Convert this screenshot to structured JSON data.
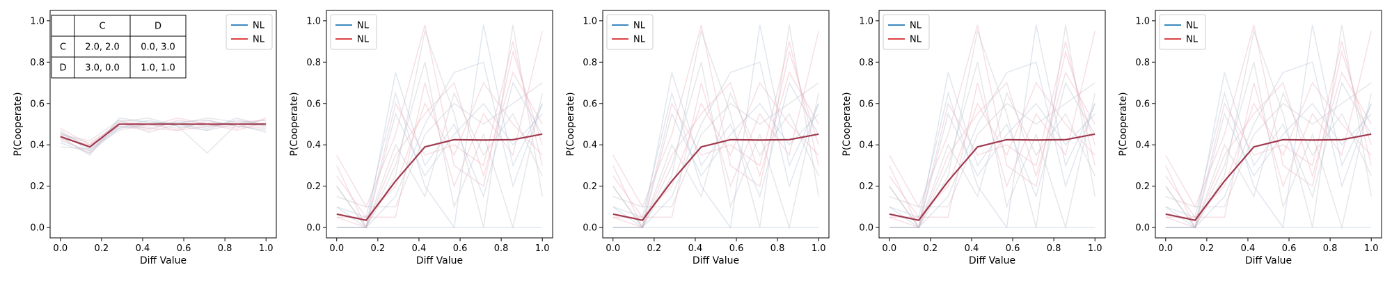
{
  "colors": {
    "blue": "#1f77b4",
    "red": "#d62728",
    "mean": "#a0384d",
    "bg_blue": "#aabbd0",
    "bg_red": "#e8a2b2",
    "bg_grey": "#bbbbc4"
  },
  "chart_data": [
    {
      "type": "line",
      "xlabel": "Diff Value",
      "ylabel": "P(Cooperate)",
      "xlim": [
        -0.05,
        1.05
      ],
      "ylim": [
        -0.05,
        1.05
      ],
      "xticks": [
        "0.0",
        "0.2",
        "0.4",
        "0.6",
        "0.8",
        "1.0"
      ],
      "yticks": [
        "0.0",
        "0.2",
        "0.4",
        "0.6",
        "0.8",
        "1.0"
      ],
      "legend": {
        "position": "top-right",
        "entries": [
          {
            "label": "NL",
            "color": "#1f77b4"
          },
          {
            "label": "NL",
            "color": "#d62728"
          }
        ]
      },
      "payoff_table": {
        "col_headers": [
          "",
          "C",
          "D"
        ],
        "rows": [
          [
            "C",
            "2.0, 2.0",
            "0.0, 3.0"
          ],
          [
            "D",
            "3.0, 0.0",
            "1.0, 1.0"
          ]
        ]
      },
      "x": [
        0.0,
        0.143,
        0.286,
        0.429,
        0.571,
        0.714,
        0.857,
        1.0
      ],
      "series": [
        {
          "name": "NL",
          "color": "#a0384d",
          "values": [
            0.44,
            0.39,
            0.5,
            0.5,
            0.5,
            0.5,
            0.5,
            0.5
          ]
        }
      ],
      "background_lines": [
        [
          0.46,
          0.37,
          0.49,
          0.48,
          0.51,
          0.49,
          0.5,
          0.52
        ],
        [
          0.43,
          0.4,
          0.51,
          0.5,
          0.47,
          0.52,
          0.49,
          0.48
        ],
        [
          0.47,
          0.38,
          0.52,
          0.46,
          0.5,
          0.53,
          0.51,
          0.5
        ],
        [
          0.41,
          0.36,
          0.48,
          0.52,
          0.49,
          0.47,
          0.53,
          0.49
        ],
        [
          0.45,
          0.41,
          0.5,
          0.49,
          0.53,
          0.5,
          0.47,
          0.51
        ],
        [
          0.39,
          0.38,
          0.47,
          0.5,
          0.48,
          0.51,
          0.5,
          0.46
        ],
        [
          0.44,
          0.35,
          0.53,
          0.51,
          0.5,
          0.48,
          0.52,
          0.5
        ],
        [
          0.48,
          0.4,
          0.49,
          0.47,
          0.52,
          0.5,
          0.48,
          0.53
        ],
        [
          0.42,
          0.37,
          0.51,
          0.53,
          0.49,
          0.36,
          0.5,
          0.49
        ],
        [
          0.46,
          0.39,
          0.48,
          0.5,
          0.51,
          0.52,
          0.49,
          0.47
        ],
        [
          0.43,
          0.36,
          0.5,
          0.48,
          0.47,
          0.49,
          0.51,
          0.52
        ],
        [
          0.45,
          0.42,
          0.52,
          0.51,
          0.5,
          0.47,
          0.5,
          0.5
        ]
      ]
    },
    {
      "type": "line",
      "xlabel": "Diff Value",
      "ylabel": "P(Cooperate)",
      "xlim": [
        -0.05,
        1.05
      ],
      "ylim": [
        -0.05,
        1.05
      ],
      "xticks": [
        "0.0",
        "0.2",
        "0.4",
        "0.6",
        "0.8",
        "1.0"
      ],
      "yticks": [
        "0.0",
        "0.2",
        "0.4",
        "0.6",
        "0.8",
        "1.0"
      ],
      "legend": {
        "position": "top-left",
        "entries": [
          {
            "label": "NL",
            "color": "#1f77b4"
          },
          {
            "label": "NL",
            "color": "#d62728"
          }
        ]
      },
      "x": [
        0.0,
        0.143,
        0.286,
        0.429,
        0.571,
        0.714,
        0.857,
        1.0
      ],
      "series": [
        {
          "name": "NL",
          "color": "#a0384d",
          "values": [
            0.065,
            0.035,
            0.225,
            0.39,
            0.425,
            0.423,
            0.425,
            0.452
          ]
        }
      ],
      "background_lines": [
        [
          0.0,
          0.0,
          0.0,
          0.0,
          0.0,
          0.0,
          0.0,
          0.0
        ],
        [
          0.35,
          0.1,
          0.45,
          0.98,
          0.3,
          0.2,
          0.85,
          0.4
        ],
        [
          0.2,
          0.0,
          0.25,
          0.95,
          0.55,
          0.0,
          0.98,
          0.15
        ],
        [
          0.1,
          0.05,
          0.65,
          0.2,
          0.0,
          0.98,
          0.3,
          0.6
        ],
        [
          0.05,
          0.0,
          0.35,
          0.55,
          0.7,
          0.25,
          0.75,
          0.5
        ],
        [
          0.15,
          0.1,
          0.1,
          0.45,
          0.6,
          0.5,
          0.6,
          0.7
        ],
        [
          0.0,
          0.0,
          0.55,
          0.25,
          0.45,
          0.6,
          0.4,
          0.55
        ],
        [
          0.25,
          0.05,
          0.2,
          0.6,
          0.35,
          0.7,
          0.5,
          0.35
        ],
        [
          0.0,
          0.0,
          0.3,
          0.8,
          0.1,
          0.45,
          0.0,
          0.65
        ],
        [
          0.1,
          0.0,
          0.75,
          0.3,
          0.5,
          0.15,
          0.7,
          0.45
        ],
        [
          0.05,
          0.05,
          0.05,
          0.7,
          0.2,
          0.55,
          0.35,
          0.95
        ],
        [
          0.2,
          0.0,
          0.4,
          0.15,
          0.65,
          0.35,
          0.55,
          0.25
        ],
        [
          0.0,
          0.0,
          0.15,
          0.5,
          0.75,
          0.8,
          0.2,
          0.6
        ],
        [
          0.3,
          0.0,
          0.6,
          0.35,
          0.4,
          0.3,
          0.9,
          0.3
        ]
      ]
    },
    {
      "type": "line",
      "xlabel": "Diff Value",
      "ylabel": "P(Cooperate)",
      "xlim": [
        -0.05,
        1.05
      ],
      "ylim": [
        -0.05,
        1.05
      ],
      "xticks": [
        "0.0",
        "0.2",
        "0.4",
        "0.6",
        "0.8",
        "1.0"
      ],
      "yticks": [
        "0.0",
        "0.2",
        "0.4",
        "0.6",
        "0.8",
        "1.0"
      ],
      "legend": {
        "position": "top-left",
        "entries": [
          {
            "label": "NL",
            "color": "#1f77b4"
          },
          {
            "label": "NL",
            "color": "#d62728"
          }
        ]
      },
      "x": [
        0.0,
        0.143,
        0.286,
        0.429,
        0.571,
        0.714,
        0.857,
        1.0
      ],
      "series": [
        {
          "name": "NL",
          "color": "#a0384d",
          "values": [
            0.065,
            0.035,
            0.225,
            0.39,
            0.425,
            0.423,
            0.425,
            0.452
          ]
        }
      ],
      "background_lines": [
        [
          0.0,
          0.0,
          0.0,
          0.0,
          0.0,
          0.0,
          0.0,
          0.0
        ],
        [
          0.35,
          0.1,
          0.45,
          0.98,
          0.3,
          0.2,
          0.85,
          0.4
        ],
        [
          0.2,
          0.0,
          0.25,
          0.95,
          0.55,
          0.0,
          0.98,
          0.15
        ],
        [
          0.1,
          0.05,
          0.65,
          0.2,
          0.0,
          0.98,
          0.3,
          0.6
        ],
        [
          0.05,
          0.0,
          0.35,
          0.55,
          0.7,
          0.25,
          0.75,
          0.5
        ],
        [
          0.15,
          0.1,
          0.1,
          0.45,
          0.6,
          0.5,
          0.6,
          0.7
        ],
        [
          0.0,
          0.0,
          0.55,
          0.25,
          0.45,
          0.6,
          0.4,
          0.55
        ],
        [
          0.25,
          0.05,
          0.2,
          0.6,
          0.35,
          0.7,
          0.5,
          0.35
        ],
        [
          0.0,
          0.0,
          0.3,
          0.8,
          0.1,
          0.45,
          0.0,
          0.65
        ],
        [
          0.1,
          0.0,
          0.75,
          0.3,
          0.5,
          0.15,
          0.7,
          0.45
        ],
        [
          0.05,
          0.05,
          0.05,
          0.7,
          0.2,
          0.55,
          0.35,
          0.95
        ],
        [
          0.2,
          0.0,
          0.4,
          0.15,
          0.65,
          0.35,
          0.55,
          0.25
        ],
        [
          0.0,
          0.0,
          0.15,
          0.5,
          0.75,
          0.8,
          0.2,
          0.6
        ],
        [
          0.3,
          0.0,
          0.6,
          0.35,
          0.4,
          0.3,
          0.9,
          0.3
        ]
      ]
    },
    {
      "type": "line",
      "xlabel": "Diff Value",
      "ylabel": "P(Cooperate)",
      "xlim": [
        -0.05,
        1.05
      ],
      "ylim": [
        -0.05,
        1.05
      ],
      "xticks": [
        "0.0",
        "0.2",
        "0.4",
        "0.6",
        "0.8",
        "1.0"
      ],
      "yticks": [
        "0.0",
        "0.2",
        "0.4",
        "0.6",
        "0.8",
        "1.0"
      ],
      "legend": {
        "position": "top-left",
        "entries": [
          {
            "label": "NL",
            "color": "#1f77b4"
          },
          {
            "label": "NL",
            "color": "#d62728"
          }
        ]
      },
      "x": [
        0.0,
        0.143,
        0.286,
        0.429,
        0.571,
        0.714,
        0.857,
        1.0
      ],
      "series": [
        {
          "name": "NL",
          "color": "#a0384d",
          "values": [
            0.065,
            0.035,
            0.225,
            0.39,
            0.425,
            0.423,
            0.425,
            0.452
          ]
        }
      ],
      "background_lines": [
        [
          0.0,
          0.0,
          0.0,
          0.0,
          0.0,
          0.0,
          0.0,
          0.0
        ],
        [
          0.35,
          0.1,
          0.45,
          0.98,
          0.3,
          0.2,
          0.85,
          0.4
        ],
        [
          0.2,
          0.0,
          0.25,
          0.95,
          0.55,
          0.0,
          0.98,
          0.15
        ],
        [
          0.1,
          0.05,
          0.65,
          0.2,
          0.0,
          0.98,
          0.3,
          0.6
        ],
        [
          0.05,
          0.0,
          0.35,
          0.55,
          0.7,
          0.25,
          0.75,
          0.5
        ],
        [
          0.15,
          0.1,
          0.1,
          0.45,
          0.6,
          0.5,
          0.6,
          0.7
        ],
        [
          0.0,
          0.0,
          0.55,
          0.25,
          0.45,
          0.6,
          0.4,
          0.55
        ],
        [
          0.25,
          0.05,
          0.2,
          0.6,
          0.35,
          0.7,
          0.5,
          0.35
        ],
        [
          0.0,
          0.0,
          0.3,
          0.8,
          0.1,
          0.45,
          0.0,
          0.65
        ],
        [
          0.1,
          0.0,
          0.75,
          0.3,
          0.5,
          0.15,
          0.7,
          0.45
        ],
        [
          0.05,
          0.05,
          0.05,
          0.7,
          0.2,
          0.55,
          0.35,
          0.95
        ],
        [
          0.2,
          0.0,
          0.4,
          0.15,
          0.65,
          0.35,
          0.55,
          0.25
        ],
        [
          0.0,
          0.0,
          0.15,
          0.5,
          0.75,
          0.8,
          0.2,
          0.6
        ],
        [
          0.3,
          0.0,
          0.6,
          0.35,
          0.4,
          0.3,
          0.9,
          0.3
        ]
      ]
    },
    {
      "type": "line",
      "xlabel": "Diff Value",
      "ylabel": "P(Cooperate)",
      "xlim": [
        -0.05,
        1.05
      ],
      "ylim": [
        -0.05,
        1.05
      ],
      "xticks": [
        "0.0",
        "0.2",
        "0.4",
        "0.6",
        "0.8",
        "1.0"
      ],
      "yticks": [
        "0.0",
        "0.2",
        "0.4",
        "0.6",
        "0.8",
        "1.0"
      ],
      "legend": {
        "position": "top-left",
        "entries": [
          {
            "label": "NL",
            "color": "#1f77b4"
          },
          {
            "label": "NL",
            "color": "#d62728"
          }
        ]
      },
      "x": [
        0.0,
        0.143,
        0.286,
        0.429,
        0.571,
        0.714,
        0.857,
        1.0
      ],
      "series": [
        {
          "name": "NL",
          "color": "#a0384d",
          "values": [
            0.065,
            0.035,
            0.225,
            0.39,
            0.425,
            0.423,
            0.425,
            0.452
          ]
        }
      ],
      "background_lines": [
        [
          0.0,
          0.0,
          0.0,
          0.0,
          0.0,
          0.0,
          0.0,
          0.0
        ],
        [
          0.35,
          0.1,
          0.45,
          0.98,
          0.3,
          0.2,
          0.85,
          0.4
        ],
        [
          0.2,
          0.0,
          0.25,
          0.95,
          0.55,
          0.0,
          0.98,
          0.15
        ],
        [
          0.1,
          0.05,
          0.65,
          0.2,
          0.0,
          0.98,
          0.3,
          0.6
        ],
        [
          0.05,
          0.0,
          0.35,
          0.55,
          0.7,
          0.25,
          0.75,
          0.5
        ],
        [
          0.15,
          0.1,
          0.1,
          0.45,
          0.6,
          0.5,
          0.6,
          0.7
        ],
        [
          0.0,
          0.0,
          0.55,
          0.25,
          0.45,
          0.6,
          0.4,
          0.55
        ],
        [
          0.25,
          0.05,
          0.2,
          0.6,
          0.35,
          0.7,
          0.5,
          0.35
        ],
        [
          0.0,
          0.0,
          0.3,
          0.8,
          0.1,
          0.45,
          0.0,
          0.65
        ],
        [
          0.1,
          0.0,
          0.75,
          0.3,
          0.5,
          0.15,
          0.7,
          0.45
        ],
        [
          0.05,
          0.05,
          0.05,
          0.7,
          0.2,
          0.55,
          0.35,
          0.95
        ],
        [
          0.2,
          0.0,
          0.4,
          0.15,
          0.65,
          0.35,
          0.55,
          0.25
        ],
        [
          0.0,
          0.0,
          0.15,
          0.5,
          0.75,
          0.8,
          0.2,
          0.6
        ],
        [
          0.3,
          0.0,
          0.6,
          0.35,
          0.4,
          0.3,
          0.9,
          0.3
        ]
      ]
    }
  ]
}
